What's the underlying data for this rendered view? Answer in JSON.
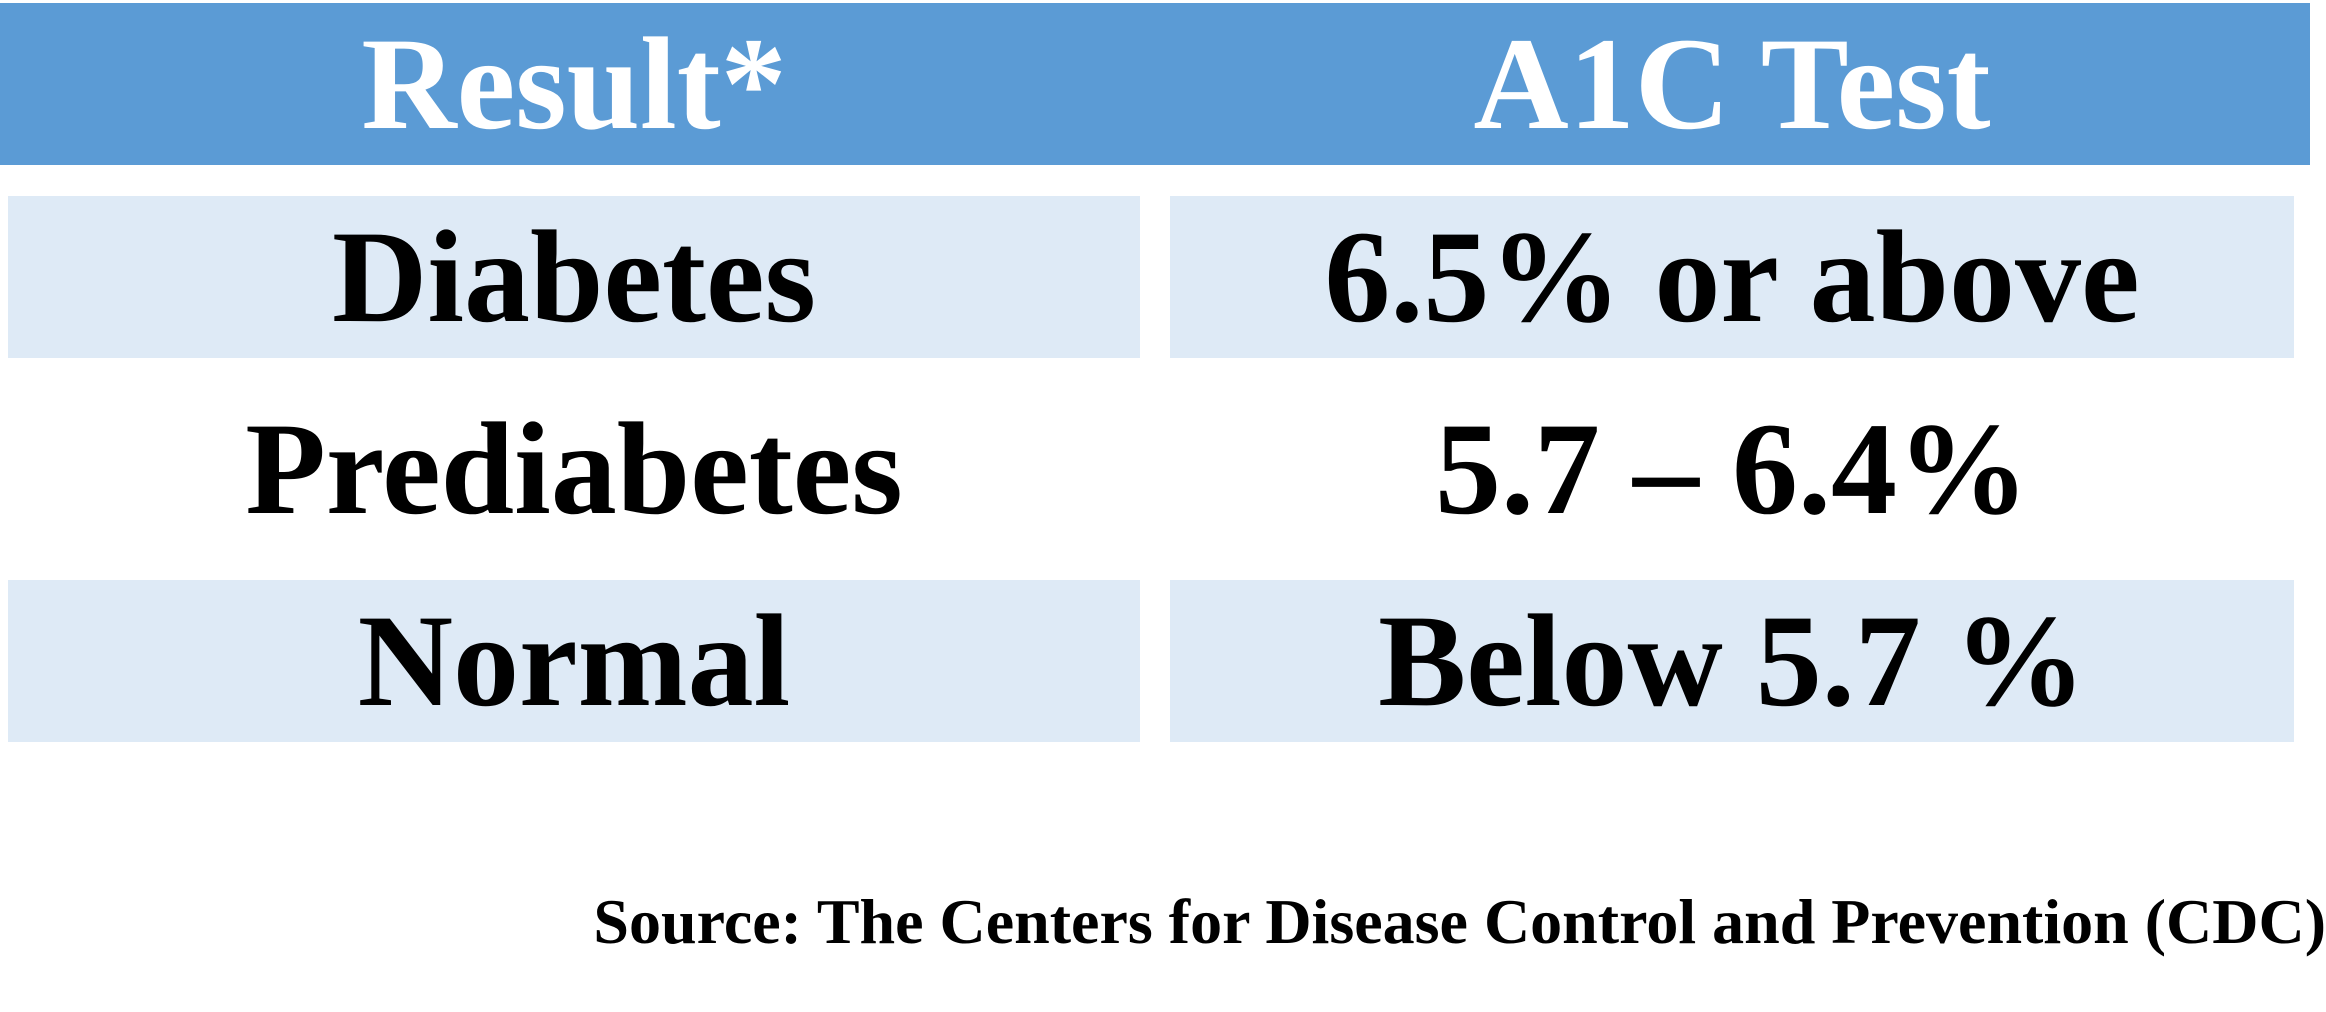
{
  "table": {
    "header": {
      "col1": "Result*",
      "col2": "A1C Test"
    },
    "rows": [
      {
        "result": "Diabetes",
        "a1c": "6.5% or above",
        "shaded": true
      },
      {
        "result": "Prediabetes",
        "a1c": "5.7 – 6.4%",
        "shaded": false
      },
      {
        "result": "Normal",
        "a1c": "Below 5.7 %",
        "shaded": true
      }
    ]
  },
  "source": "Source: The Centers for Disease Control and Prevention (CDC)",
  "colors": {
    "header_bg": "#5b9bd5",
    "row_shade": "#deeaf6",
    "header_text": "#ffffff",
    "body_text": "#000000"
  }
}
